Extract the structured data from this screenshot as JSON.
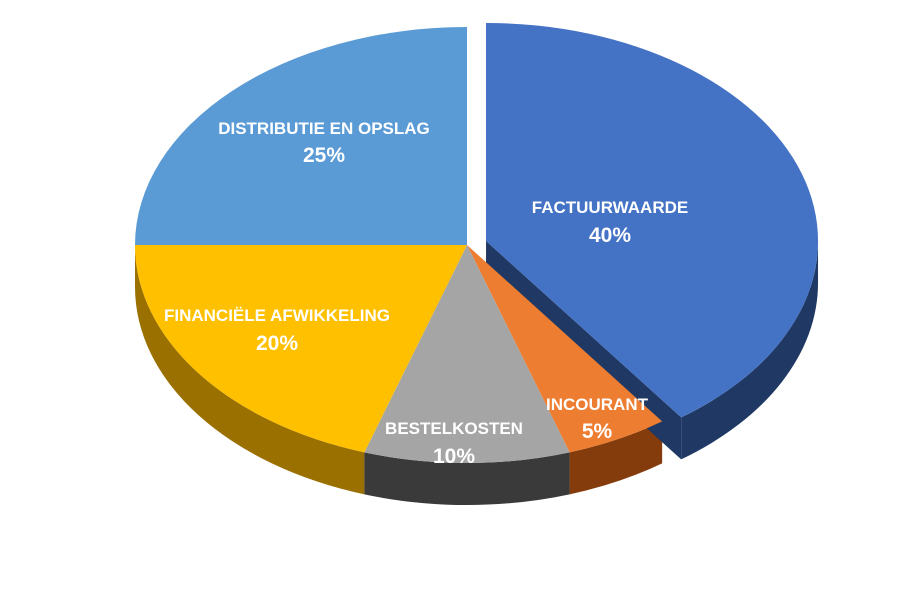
{
  "chart_data": {
    "type": "pie",
    "title": "",
    "categories": [
      "FACTUURWAARDE",
      "INCOURANT",
      "BESTELKOSTEN",
      "FINANCIËLE AFWIKKELING",
      "DISTRIBUTIE EN OPSLAG"
    ],
    "values": [
      40,
      5,
      10,
      20,
      25
    ],
    "labels": [
      "40%",
      "5%",
      "10%",
      "20%",
      "25%"
    ],
    "exploded": [
      "FACTUURWAARDE"
    ],
    "colors": [
      "#4472C4",
      "#ED7D31",
      "#A5A5A5",
      "#FFC000",
      "#5B9BD5"
    ],
    "side_colors": [
      "#1F3864",
      "#843C0C",
      "#3A3A3A",
      "#9A7000",
      "#2E5E8C"
    ],
    "style": "3d-tilted"
  }
}
